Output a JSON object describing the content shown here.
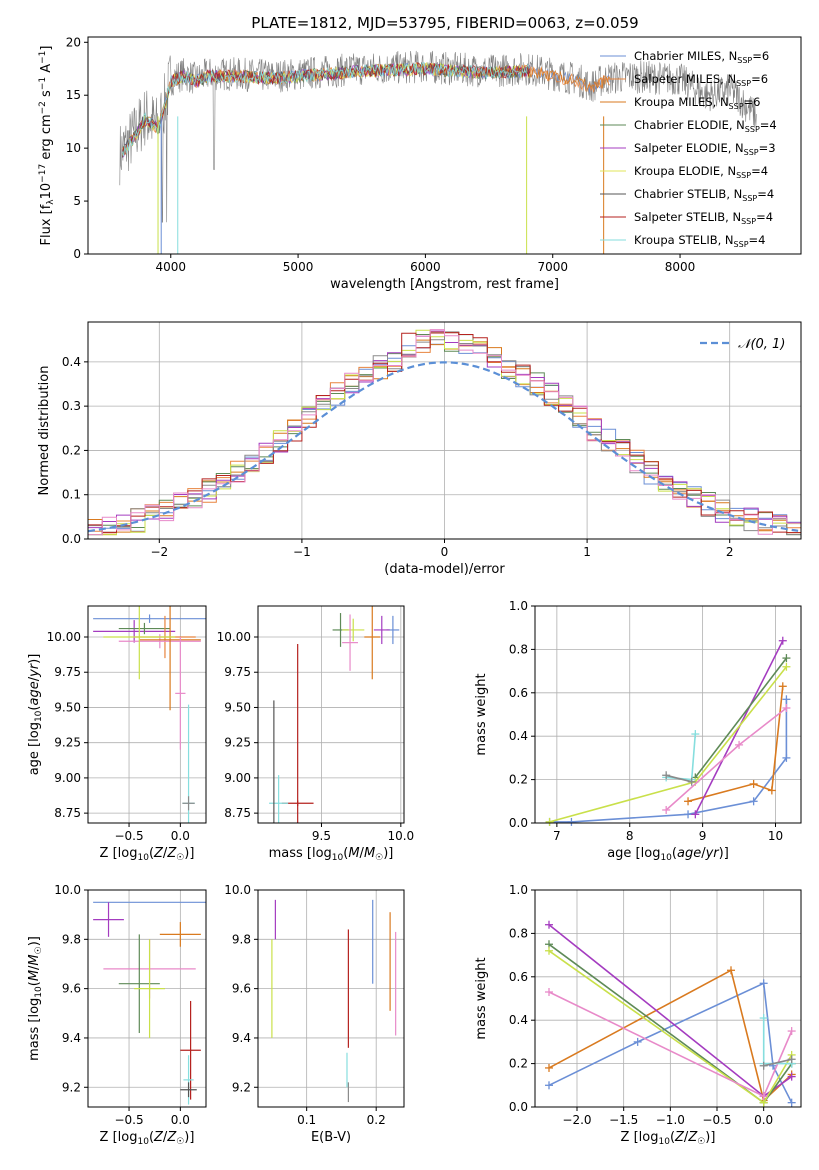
{
  "figure": {
    "title": "PLATE=1812, MJD=53795, FIBERID=0063, z=0.059"
  },
  "chart_data": [
    {
      "id": "spectrum",
      "type": "line",
      "xlabel": "wavelength [Angstrom, rest frame]",
      "ylabel": "Flux [f_λ10^-17 erg cm^-2 s^-1 A^-1]",
      "xlim": [
        3350,
        8950
      ],
      "ylim": [
        0,
        20.5
      ],
      "xticks": [
        4000,
        5000,
        6000,
        7000,
        8000
      ],
      "yticks": [
        0,
        5,
        10,
        15,
        20
      ],
      "legend_position": "top-right",
      "observed_color": "#808080",
      "observed_knots": [
        [
          3600,
          9.5
        ],
        [
          3700,
          11
        ],
        [
          3800,
          13
        ],
        [
          3900,
          12
        ],
        [
          3950,
          14
        ],
        [
          4000,
          16.5
        ],
        [
          4100,
          17
        ],
        [
          4200,
          16.5
        ],
        [
          4300,
          17
        ],
        [
          4500,
          17
        ],
        [
          4800,
          16.8
        ],
        [
          5000,
          17
        ],
        [
          5200,
          17.2
        ],
        [
          5500,
          17.5
        ],
        [
          5800,
          17.6
        ],
        [
          6000,
          17.7
        ],
        [
          6200,
          17.5
        ],
        [
          6500,
          17.3
        ],
        [
          6800,
          17.5
        ],
        [
          7000,
          17
        ],
        [
          7200,
          16.5
        ],
        [
          7300,
          15.8
        ],
        [
          7400,
          16.5
        ],
        [
          7600,
          16.8
        ],
        [
          8000,
          16.5
        ],
        [
          8200,
          15
        ],
        [
          8400,
          15.5
        ],
        [
          8600,
          13
        ]
      ],
      "series": [
        {
          "name": "Chabrier MILES",
          "nssp": "6",
          "color": "#6b8fd6"
        },
        {
          "name": "Salpeter MILES",
          "nssp": "6",
          "color": "#e8843e"
        },
        {
          "name": "Kroupa MILES",
          "nssp": "6",
          "color": "#d97a1f"
        },
        {
          "name": "Chabrier ELODIE",
          "nssp": "4",
          "color": "#5e8a57"
        },
        {
          "name": "Salpeter ELODIE",
          "nssp": "3",
          "color": "#a43cc0"
        },
        {
          "name": "Kroupa ELODIE",
          "nssp": "4",
          "color": "#e0e65a"
        },
        {
          "name": "Chabrier STELIB",
          "nssp": "4",
          "color": "#555555"
        },
        {
          "name": "Salpeter STELIB",
          "nssp": "4",
          "color": "#b5221f"
        },
        {
          "name": "Kroupa STELIB",
          "nssp": "4",
          "color": "#86dede"
        }
      ]
    },
    {
      "id": "residuals",
      "type": "line",
      "xlabel": "(data-model)/error",
      "ylabel": "Normed distribution",
      "xlim": [
        -2.5,
        2.5
      ],
      "ylim": [
        0,
        0.49
      ],
      "xticks": [
        -2,
        -1,
        0,
        1,
        2
      ],
      "yticks": [
        0.0,
        0.1,
        0.2,
        0.3,
        0.4
      ],
      "grid": true,
      "legend_position": "top-right",
      "gaussian": {
        "label": "𝒩(0, 1)",
        "mu": 0,
        "sigma": 1,
        "color": "#5b8fd6"
      },
      "bin_width": 0.1,
      "hist_colors": [
        "#6b8fd6",
        "#e8843e",
        "#d97a1f",
        "#5e8a57",
        "#a43cc0",
        "#c9e04a",
        "#8a8a8a",
        "#b5221f",
        "#e88ac9"
      ]
    },
    {
      "id": "age_vs_Z",
      "type": "scatter",
      "xlabel": "Z [log10(Z/Z☉)]",
      "ylabel": "age [log10(age/yr)]",
      "xlim": [
        -0.9,
        0.25
      ],
      "ylim": [
        8.68,
        10.22
      ],
      "xticks": [
        -0.5,
        0.0
      ],
      "yticks": [
        8.75,
        9.0,
        9.25,
        9.5,
        9.75,
        10.0
      ],
      "grid": true,
      "points": [
        {
          "x": -0.3,
          "y": 10.13,
          "xerr": 0.55,
          "yerr": 0.03,
          "color": "#6b8fd6"
        },
        {
          "x": -0.45,
          "y": 10.04,
          "xerr": 0.4,
          "yerr": 0.08,
          "color": "#a43cc0"
        },
        {
          "x": -0.35,
          "y": 10.06,
          "xerr": 0.25,
          "yerr": 0.04,
          "color": "#5e8a57"
        },
        {
          "x": -0.15,
          "y": 10.0,
          "xerr": 0.3,
          "yerr": 0.15,
          "color": "#e8843e"
        },
        {
          "x": -0.2,
          "y": 9.97,
          "xerr": 0.4,
          "yerr": 0.05,
          "color": "#e88ac9"
        },
        {
          "x": -0.1,
          "y": 9.98,
          "xerr": 0.3,
          "yerr": 0.5,
          "color": "#d97a1f"
        },
        {
          "x": 0.0,
          "y": 9.6,
          "xerr": 0.05,
          "yerr": 0.4,
          "color": "#e88ac9"
        },
        {
          "x": 0.08,
          "y": 8.82,
          "xerr": 0.06,
          "yerr": 0.7,
          "color": "#86dede"
        },
        {
          "x": 0.08,
          "y": 8.82,
          "xerr": 0.06,
          "yerr": 0.05,
          "color": "#8a8a8a"
        },
        {
          "x": -0.4,
          "y": 10.0,
          "xerr": 0.35,
          "yerr": 0.3,
          "color": "#c9e04a"
        }
      ]
    },
    {
      "id": "age_vs_mass",
      "type": "scatter",
      "xlabel": "mass [log10(M/M☉)]",
      "ylabel": "",
      "xlim": [
        9.1,
        10.02
      ],
      "ylim": [
        8.68,
        10.22
      ],
      "xticks": [
        9.5,
        10.0
      ],
      "yticks": [
        8.75,
        9.0,
        9.25,
        9.5,
        9.75,
        10.0
      ],
      "grid": true,
      "points": [
        {
          "x": 9.95,
          "y": 10.05,
          "xerr": 0.04,
          "yerr": 0.1,
          "color": "#6b8fd6"
        },
        {
          "x": 9.88,
          "y": 10.05,
          "xerr": 0.05,
          "yerr": 0.1,
          "color": "#a43cc0"
        },
        {
          "x": 9.62,
          "y": 10.05,
          "xerr": 0.05,
          "yerr": 0.12,
          "color": "#5e8a57"
        },
        {
          "x": 9.7,
          "y": 10.05,
          "xerr": 0.07,
          "yerr": 0.08,
          "color": "#c9e04a"
        },
        {
          "x": 9.82,
          "y": 10.0,
          "xerr": 0.05,
          "yerr": 0.3,
          "color": "#d97a1f"
        },
        {
          "x": 9.68,
          "y": 9.96,
          "xerr": 0.05,
          "yerr": 0.2,
          "color": "#e88ac9"
        },
        {
          "x": 9.35,
          "y": 8.82,
          "xerr": 0.1,
          "yerr": 0.02,
          "color": "#b5221f"
        },
        {
          "x": 9.35,
          "y": 9.2,
          "xerr": 0.0,
          "yerr": 0.75,
          "color": "#b5221f"
        },
        {
          "x": 9.23,
          "y": 8.82,
          "xerr": 0.06,
          "yerr": 0.2,
          "color": "#86dede"
        },
        {
          "x": 9.2,
          "y": 9.1,
          "xerr": 0.0,
          "yerr": 0.45,
          "color": "#555555"
        }
      ]
    },
    {
      "id": "weight_vs_age",
      "type": "line",
      "xlabel": "age [log10(age/yr)]",
      "ylabel": "mass weight",
      "xlim": [
        6.7,
        10.35
      ],
      "ylim": [
        0,
        1.0
      ],
      "xticks": [
        7,
        8,
        9,
        10
      ],
      "yticks": [
        0.0,
        0.2,
        0.4,
        0.6,
        0.8,
        1.0
      ],
      "grid": true,
      "series": [
        {
          "color": "#6b8fd6",
          "points": [
            [
              6.9,
              0.005
            ],
            [
              7.2,
              0.005
            ],
            [
              8.8,
              0.04
            ],
            [
              9.7,
              0.1
            ],
            [
              10.15,
              0.3
            ],
            [
              10.15,
              0.57
            ]
          ]
        },
        {
          "color": "#d97a1f",
          "points": [
            [
              8.8,
              0.1
            ],
            [
              9.7,
              0.18
            ],
            [
              9.95,
              0.15
            ],
            [
              10.1,
              0.63
            ]
          ]
        },
        {
          "color": "#a43cc0",
          "points": [
            [
              8.9,
              0.04
            ],
            [
              10.1,
              0.84
            ]
          ]
        },
        {
          "color": "#5e8a57",
          "points": [
            [
              8.9,
              0.21
            ],
            [
              10.15,
              0.76
            ]
          ]
        },
        {
          "color": "#c9e04a",
          "points": [
            [
              6.9,
              0.005
            ],
            [
              8.9,
              0.19
            ],
            [
              10.15,
              0.72
            ]
          ]
        },
        {
          "color": "#e88ac9",
          "points": [
            [
              8.5,
              0.06
            ],
            [
              9.5,
              0.36
            ],
            [
              10.15,
              0.53
            ]
          ]
        },
        {
          "color": "#86dede",
          "points": [
            [
              8.5,
              0.21
            ],
            [
              8.85,
              0.2
            ],
            [
              8.9,
              0.41
            ]
          ]
        },
        {
          "color": "#8a8a8a",
          "points": [
            [
              8.5,
              0.22
            ],
            [
              8.85,
              0.19
            ]
          ]
        }
      ]
    },
    {
      "id": "mass_vs_Z",
      "type": "scatter",
      "xlabel": "Z [log10(Z/Z☉)]",
      "ylabel": "mass [log10(M/M☉)]",
      "xlim": [
        -0.9,
        0.25
      ],
      "ylim": [
        9.12,
        10.0
      ],
      "xticks": [
        -0.5,
        0.0
      ],
      "yticks": [
        9.2,
        9.4,
        9.6,
        9.8,
        10.0
      ],
      "grid": true,
      "points": [
        {
          "x": -0.3,
          "y": 9.95,
          "xerr": 0.55,
          "yerr": 0.0,
          "color": "#6b8fd6"
        },
        {
          "x": -0.7,
          "y": 9.88,
          "xerr": 0.15,
          "yerr": 0.07,
          "color": "#a43cc0"
        },
        {
          "x": 0.0,
          "y": 9.82,
          "xerr": 0.2,
          "yerr": 0.05,
          "color": "#d97a1f"
        },
        {
          "x": -0.3,
          "y": 9.68,
          "xerr": 0.45,
          "yerr": 0.12,
          "color": "#e88ac9"
        },
        {
          "x": -0.4,
          "y": 9.62,
          "xerr": 0.2,
          "yerr": 0.2,
          "color": "#5e8a57"
        },
        {
          "x": -0.3,
          "y": 9.6,
          "xerr": 0.15,
          "yerr": 0.2,
          "color": "#c9e04a"
        },
        {
          "x": 0.1,
          "y": 9.35,
          "xerr": 0.1,
          "yerr": 0.2,
          "color": "#b5221f"
        },
        {
          "x": 0.08,
          "y": 9.23,
          "xerr": 0.05,
          "yerr": 0.1,
          "color": "#86dede"
        },
        {
          "x": 0.08,
          "y": 9.19,
          "xerr": 0.08,
          "yerr": 0.03,
          "color": "#555555"
        }
      ]
    },
    {
      "id": "mass_vs_ebv",
      "type": "scatter",
      "xlabel": "E(B-V)",
      "ylabel": "",
      "xlim": [
        0.03,
        0.24
      ],
      "ylim": [
        9.12,
        10.0
      ],
      "xticks": [
        0.1,
        0.2
      ],
      "yticks": [
        9.2,
        9.4,
        9.6,
        9.8,
        10.0
      ],
      "grid": true,
      "points": [
        {
          "x": 0.195,
          "y": 9.79,
          "xerr": 0,
          "yerr": 0.17,
          "color": "#6b8fd6"
        },
        {
          "x": 0.055,
          "y": 9.88,
          "xerr": 0,
          "yerr": 0.08,
          "color": "#a43cc0"
        },
        {
          "x": 0.05,
          "y": 9.6,
          "xerr": 0,
          "yerr": 0.2,
          "color": "#c9e04a"
        },
        {
          "x": 0.16,
          "y": 9.6,
          "xerr": 0,
          "yerr": 0.24,
          "color": "#b5221f"
        },
        {
          "x": 0.158,
          "y": 9.27,
          "xerr": 0,
          "yerr": 0.07,
          "color": "#86dede"
        },
        {
          "x": 0.16,
          "y": 9.18,
          "xerr": 0,
          "yerr": 0.04,
          "color": "#8a8a8a"
        },
        {
          "x": 0.22,
          "y": 9.71,
          "xerr": 0,
          "yerr": 0.2,
          "color": "#d97a1f"
        },
        {
          "x": 0.228,
          "y": 9.62,
          "xerr": 0,
          "yerr": 0.21,
          "color": "#e88ac9"
        }
      ]
    },
    {
      "id": "weight_vs_Z",
      "type": "line",
      "xlabel": "Z [log10(Z/Z☉)]",
      "ylabel": "mass weight",
      "xlim": [
        -2.45,
        0.4
      ],
      "ylim": [
        0,
        1.0
      ],
      "xticks": [
        -2.0,
        -1.5,
        -1.0,
        -0.5,
        0.0
      ],
      "yticks": [
        0.0,
        0.2,
        0.4,
        0.6,
        0.8,
        1.0
      ],
      "grid": true,
      "series": [
        {
          "color": "#6b8fd6",
          "points": [
            [
              -2.3,
              0.1
            ],
            [
              -1.35,
              0.3
            ],
            [
              0.0,
              0.57
            ],
            [
              0.1,
              0.19
            ],
            [
              0.3,
              0.02
            ]
          ]
        },
        {
          "color": "#d97a1f",
          "points": [
            [
              -2.3,
              0.18
            ],
            [
              -0.35,
              0.63
            ],
            [
              0.0,
              0.03
            ],
            [
              0.3,
              0.15
            ]
          ]
        },
        {
          "color": "#a43cc0",
          "points": [
            [
              -2.3,
              0.84
            ],
            [
              0.0,
              0.05
            ],
            [
              0.3,
              0.14
            ]
          ]
        },
        {
          "color": "#5e8a57",
          "points": [
            [
              -2.3,
              0.75
            ],
            [
              0.0,
              0.02
            ],
            [
              0.3,
              0.2
            ]
          ]
        },
        {
          "color": "#c9e04a",
          "points": [
            [
              -2.3,
              0.72
            ],
            [
              0.0,
              0.02
            ],
            [
              0.3,
              0.24
            ]
          ]
        },
        {
          "color": "#e88ac9",
          "points": [
            [
              -2.3,
              0.53
            ],
            [
              0.0,
              0.05
            ],
            [
              0.3,
              0.35
            ]
          ]
        },
        {
          "color": "#86dede",
          "points": [
            [
              0.0,
              0.41
            ],
            [
              0.0,
              0.2
            ],
            [
              0.3,
              0.2
            ]
          ]
        },
        {
          "color": "#8a8a8a",
          "points": [
            [
              0.0,
              0.19
            ],
            [
              0.3,
              0.22
            ]
          ]
        }
      ]
    }
  ]
}
